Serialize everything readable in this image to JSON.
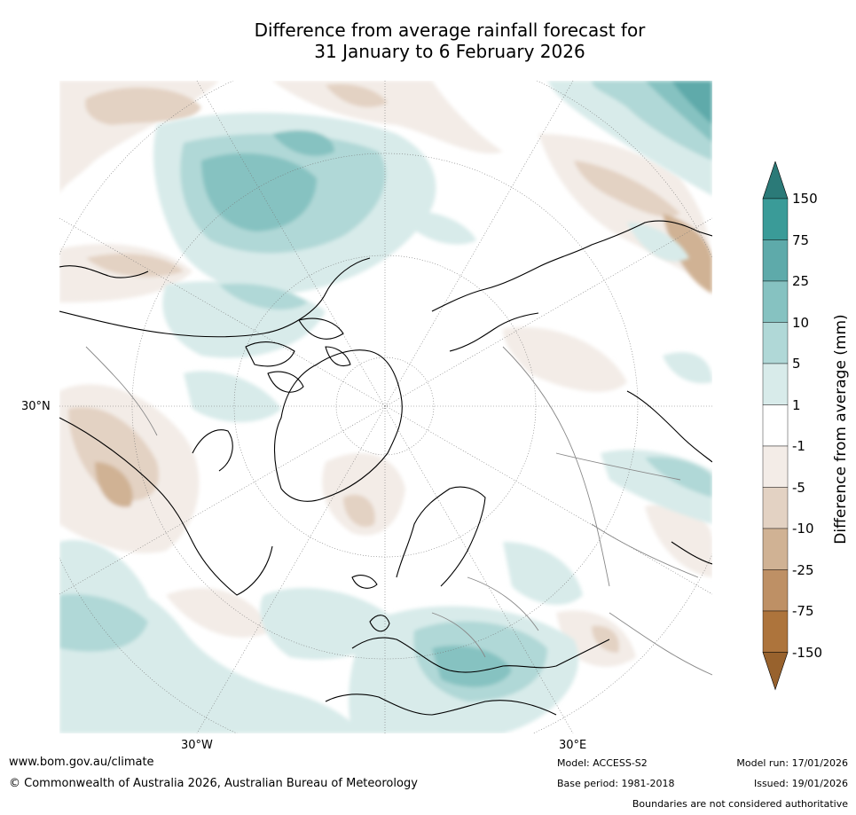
{
  "title_line1": "Difference from average rainfall forecast for",
  "title_line2": "31 January to 6 February 2026",
  "map": {
    "lat_label_30n": "30°N",
    "lon_label_30w": "30°W",
    "lon_label_30e": "30°E"
  },
  "colorbar": {
    "label": "Difference from average (mm)",
    "ticks": [
      "150",
      "75",
      "25",
      "10",
      "5",
      "1",
      "-1",
      "-5",
      "-10",
      "-25",
      "-75",
      "-150"
    ],
    "colors": [
      "#2b7a78",
      "#3a9b98",
      "#5eaaaa",
      "#86c2c1",
      "#b0d8d7",
      "#d8ebea",
      "#ffffff",
      "#f3ece7",
      "#e3d2c3",
      "#d0b294",
      "#be9065",
      "#ad743c",
      "#98622d"
    ]
  },
  "footer": {
    "url": "www.bom.gov.au/climate",
    "copyright": "© Commonwealth of Australia 2026, Australian Bureau of Meteorology",
    "model": "Model: ACCESS-S2",
    "base_period": "Base period: 1981-2018",
    "model_run": "Model run: 17/01/2026",
    "issued": "Issued: 19/01/2026",
    "disclaimer": "Boundaries are not considered authoritative"
  }
}
